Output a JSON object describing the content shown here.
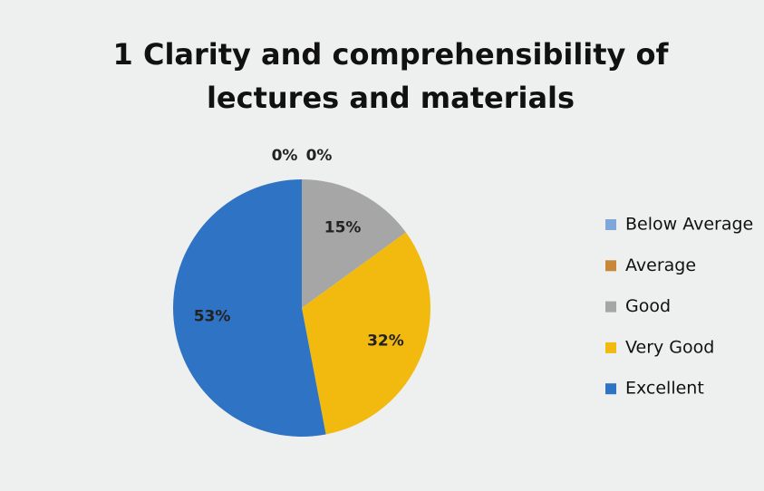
{
  "chart_data": {
    "type": "pie",
    "title": "1 Clarity and comprehensibility of lectures and materials",
    "categories": [
      "Below Average",
      "Average",
      "Good",
      "Very Good",
      "Excellent"
    ],
    "values": [
      0,
      0,
      15,
      32,
      53
    ],
    "value_labels": [
      "0%",
      "0%",
      "15%",
      "32%",
      "53%"
    ],
    "colors": [
      "#7fa8d8",
      "#c8883a",
      "#a6a6a6",
      "#f2b90f",
      "#2f73c4"
    ],
    "legend": "right"
  }
}
